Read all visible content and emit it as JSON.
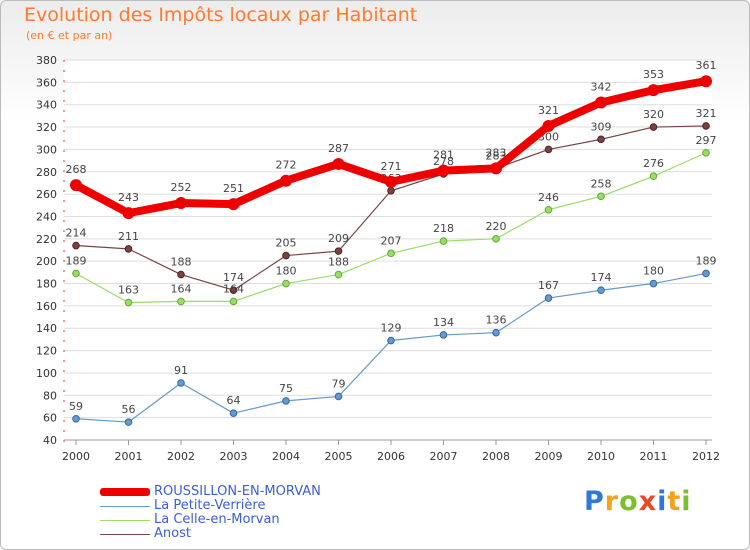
{
  "title": "Evolution des Impôts locaux par Habitant",
  "subtitle": "(en € et par an)",
  "logo": {
    "text": "Proxiti",
    "colors": [
      "#2f78d8",
      "#f4a21c",
      "#7cbf2c",
      "#e84b2a",
      "#2f78d8",
      "#f4a21c",
      "#7cbf2c"
    ]
  },
  "chart_data": {
    "type": "line",
    "title": "Evolution des Impôts locaux par Habitant",
    "subtitle": "(en € et par an)",
    "xlabel": "",
    "ylabel": "",
    "x": [
      "2000",
      "2001",
      "2002",
      "2003",
      "2004",
      "2005",
      "2006",
      "2007",
      "2008",
      "2009",
      "2010",
      "2011",
      "2012"
    ],
    "ylim": [
      40,
      380
    ],
    "yticks": [
      40,
      60,
      80,
      100,
      120,
      140,
      160,
      180,
      200,
      220,
      240,
      260,
      280,
      300,
      320,
      340,
      360,
      380
    ],
    "grid": "horizontal",
    "legend_position": "bottom-left",
    "series": [
      {
        "name": "ROUSSILLON-EN-MORVAN",
        "color": "#ee0000",
        "values": [
          268,
          243,
          252,
          251,
          272,
          287,
          271,
          281,
          283,
          321,
          342,
          353,
          361
        ],
        "labels": [
          "268",
          "243",
          "252",
          "251",
          "272",
          "287",
          "271",
          "281",
          "283",
          "321",
          "342",
          "353",
          "361"
        ]
      },
      {
        "name": "La Petite-Verrière",
        "color": "#6699cc",
        "values": [
          59,
          56,
          91,
          64,
          75,
          79,
          129,
          134,
          136,
          167,
          174,
          180,
          189
        ],
        "labels": [
          "59",
          "56",
          "91",
          "64",
          "75",
          "79",
          "129",
          "134",
          "136",
          "167",
          "174",
          "180",
          "189"
        ]
      },
      {
        "name": "La Celle-en-Morvan",
        "color": "#99dd66",
        "values": [
          189,
          163,
          164,
          164,
          180,
          188,
          207,
          218,
          220,
          246,
          258,
          276,
          297
        ],
        "labels": [
          "189",
          "163",
          "164",
          "164",
          "180",
          "188",
          "207",
          "218",
          "220",
          "246",
          "258",
          "276",
          "297"
        ]
      },
      {
        "name": "Anost",
        "color": "#774444",
        "values": [
          214,
          211,
          188,
          174,
          205,
          209,
          263,
          278,
          283,
          300,
          309,
          320,
          321
        ],
        "labels": [
          "214",
          "211",
          "188",
          "174",
          "205",
          "209",
          "263",
          "278",
          "283",
          "300",
          "309",
          "320",
          "321"
        ]
      }
    ]
  }
}
